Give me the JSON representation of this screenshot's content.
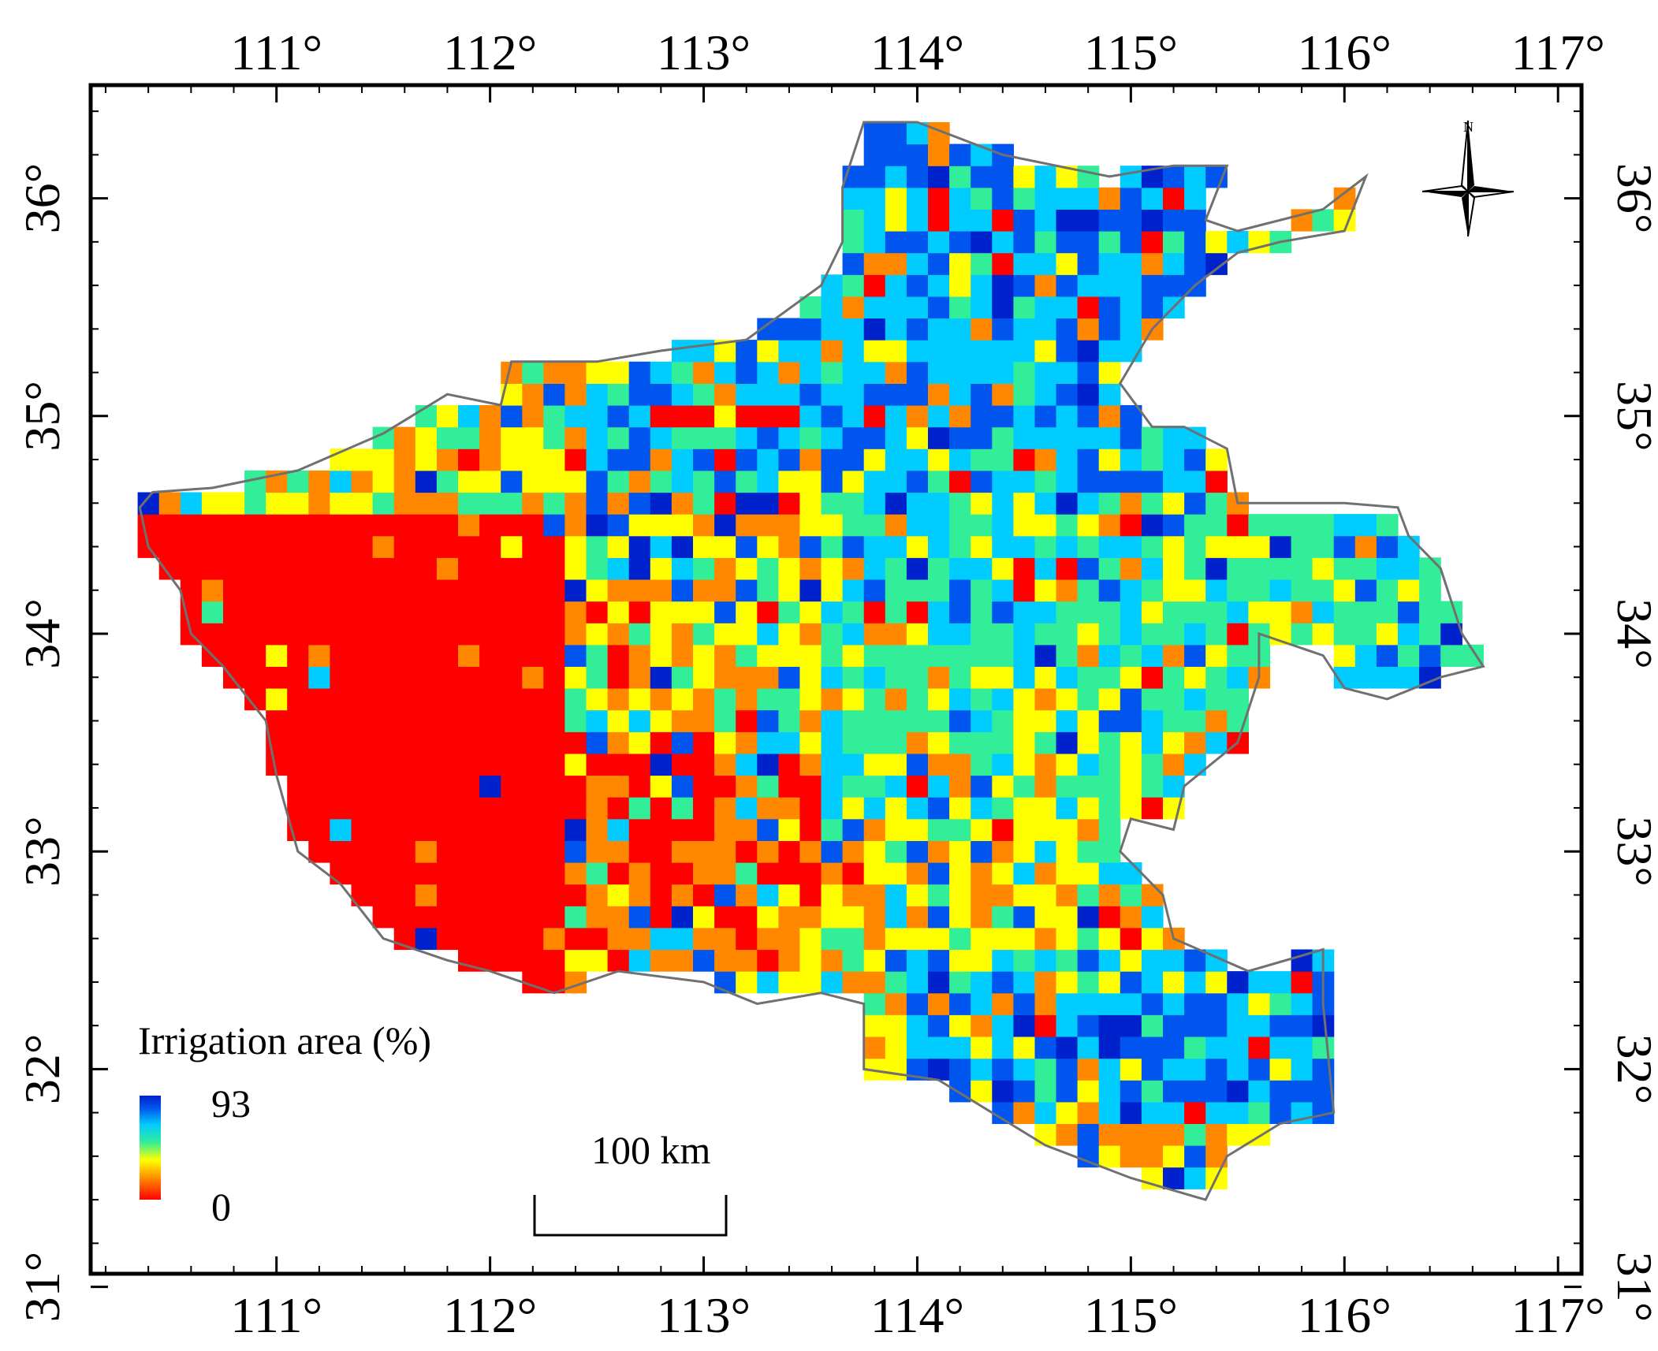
{
  "map": {
    "axes": {
      "lon_ticks": [
        111,
        112,
        113,
        114,
        115,
        116,
        117
      ],
      "lat_ticks": [
        31,
        32,
        33,
        34,
        35,
        36
      ],
      "lon_range": [
        110.13,
        117.11
      ],
      "lat_range": [
        31.06,
        36.52
      ],
      "lon_labels": [
        "111°",
        "112°",
        "113°",
        "114°",
        "115°",
        "116°",
        "117°"
      ],
      "lat_labels": [
        "31°",
        "32°",
        "33°",
        "34°",
        "35°",
        "36°"
      ]
    },
    "legend": {
      "title": "Irrigation area (%)",
      "max_label": "93",
      "min_label": "0",
      "max_value": 93,
      "min_value": 0,
      "colors": [
        "#ff0000",
        "#ff8800",
        "#ffff00",
        "#33ee99",
        "#00ccff",
        "#0055ee",
        "#0022cc"
      ]
    },
    "scale_bar": {
      "label": "100  km"
    },
    "north_arrow": {
      "label": "N"
    },
    "colors": {
      "boundary": "#707070",
      "frame": "#000000",
      "low": "#ff0000",
      "high": "#0033dd"
    }
  }
}
